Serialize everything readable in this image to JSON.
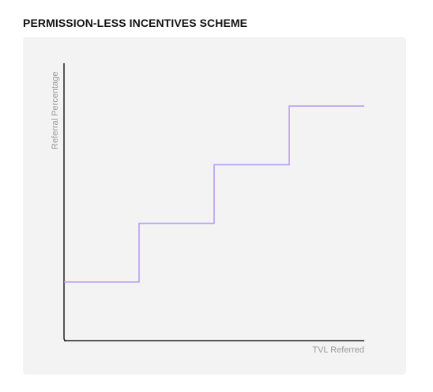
{
  "title": "PERMISSION-LESS INCENTIVES SCHEME",
  "chart_data": {
    "type": "line",
    "shape": "step",
    "title": "PERMISSION-LESS INCENTIVES SCHEME",
    "xlabel": "TVL Referred",
    "ylabel": "Referral Percentage",
    "grid": false,
    "legend": "none",
    "ticks": "none",
    "x": [
      0,
      1,
      2,
      3,
      4
    ],
    "series": [
      {
        "values": [
          1,
          2,
          3,
          4,
          4
        ],
        "color": "#b89cf5"
      }
    ],
    "xlim": [
      0,
      4
    ],
    "ylim": [
      0,
      5
    ]
  },
  "colors": {
    "line": "#b89cf5",
    "axis": "#222222",
    "panel": "#f3f3f3",
    "label": "#9a9a9a"
  }
}
